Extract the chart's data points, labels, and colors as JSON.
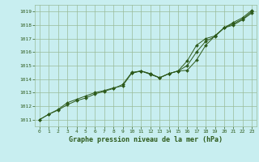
{
  "title": "Graphe pression niveau de la mer (hPa)",
  "background_color": "#c8eef0",
  "grid_color": "#99bb99",
  "line_color": "#2d5a1b",
  "xlim": [
    -0.5,
    23.5
  ],
  "ylim": [
    1010.5,
    1019.5
  ],
  "yticks": [
    1011,
    1012,
    1013,
    1014,
    1015,
    1016,
    1017,
    1018,
    1019
  ],
  "xticks": [
    0,
    1,
    2,
    3,
    4,
    5,
    6,
    7,
    8,
    9,
    10,
    11,
    12,
    13,
    14,
    15,
    16,
    17,
    18,
    19,
    20,
    21,
    22,
    23
  ],
  "series1_x": [
    0,
    1,
    2,
    3,
    4,
    5,
    6,
    7,
    8,
    9,
    10,
    11,
    12,
    13,
    14,
    15,
    16,
    17,
    18,
    19,
    20,
    21,
    22,
    23
  ],
  "series1_y": [
    1011.0,
    1011.4,
    1011.7,
    1012.1,
    1012.4,
    1012.6,
    1012.9,
    1013.1,
    1013.3,
    1013.6,
    1014.5,
    1014.6,
    1014.35,
    1014.1,
    1014.4,
    1014.6,
    1014.65,
    1015.4,
    1016.5,
    1017.2,
    1017.8,
    1018.1,
    1018.45,
    1019.0
  ],
  "series2_x": [
    0,
    1,
    2,
    3,
    4,
    5,
    6,
    7,
    8,
    9,
    10,
    11,
    12,
    13,
    14,
    15,
    16,
    17,
    18,
    19,
    20,
    21,
    22,
    23
  ],
  "series2_y": [
    1011.0,
    1011.4,
    1011.75,
    1012.25,
    1012.5,
    1012.75,
    1013.0,
    1013.15,
    1013.35,
    1013.5,
    1014.45,
    1014.6,
    1014.4,
    1014.1,
    1014.4,
    1014.6,
    1015.0,
    1016.0,
    1016.8,
    1017.15,
    1017.8,
    1018.2,
    1018.55,
    1019.1
  ],
  "series3_x": [
    10,
    11,
    12,
    13,
    14,
    15,
    16,
    17,
    18,
    19,
    20,
    21,
    22,
    23
  ],
  "series3_y": [
    1014.45,
    1014.6,
    1014.4,
    1014.1,
    1014.4,
    1014.6,
    1015.35,
    1016.5,
    1017.0,
    1017.2,
    1017.8,
    1018.0,
    1018.4,
    1018.9
  ]
}
